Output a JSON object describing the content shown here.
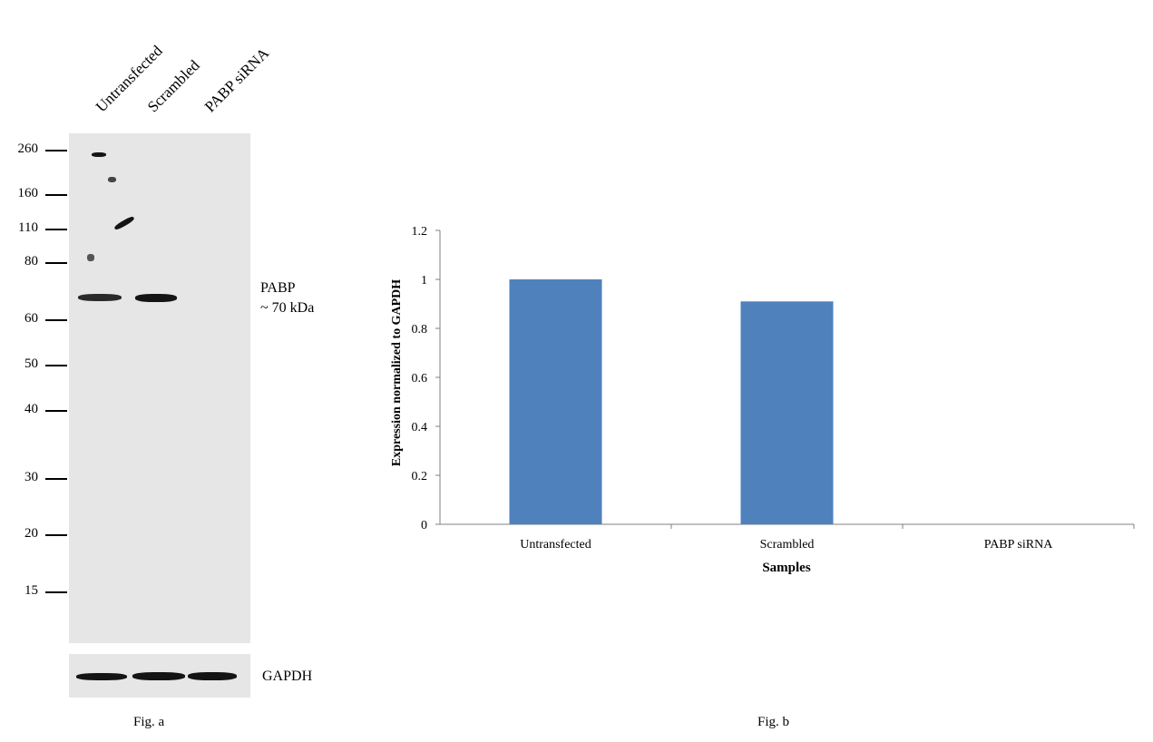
{
  "figure_a": {
    "lanes": [
      "Untransfected",
      "Scrambled",
      "PABP siRNA"
    ],
    "markers": [
      "260",
      "160",
      "110",
      "80",
      "60",
      "50",
      "40",
      "30",
      "20",
      "15"
    ],
    "target_label": "PABP",
    "target_size": "~ 70 kDa",
    "loading_control": "GAPDH",
    "caption": "Fig. a"
  },
  "figure_b": {
    "caption": "Fig. b"
  },
  "chart_data": {
    "type": "bar",
    "categories": [
      "Untransfected",
      "Scrambled",
      "PABP siRNA"
    ],
    "series": [
      {
        "values": [
          1.0,
          0.91,
          0.0
        ]
      }
    ],
    "title": "",
    "xlabel": "Samples",
    "ylabel": "Expression normalized to GAPDH",
    "ylim": [
      0,
      1.2
    ],
    "yticks": [
      "0",
      "0.2",
      "0.4",
      "0.6",
      "0.8",
      "1",
      "1.2"
    ],
    "bar_color": "#4f81bd",
    "grid": false,
    "legend": "none"
  }
}
